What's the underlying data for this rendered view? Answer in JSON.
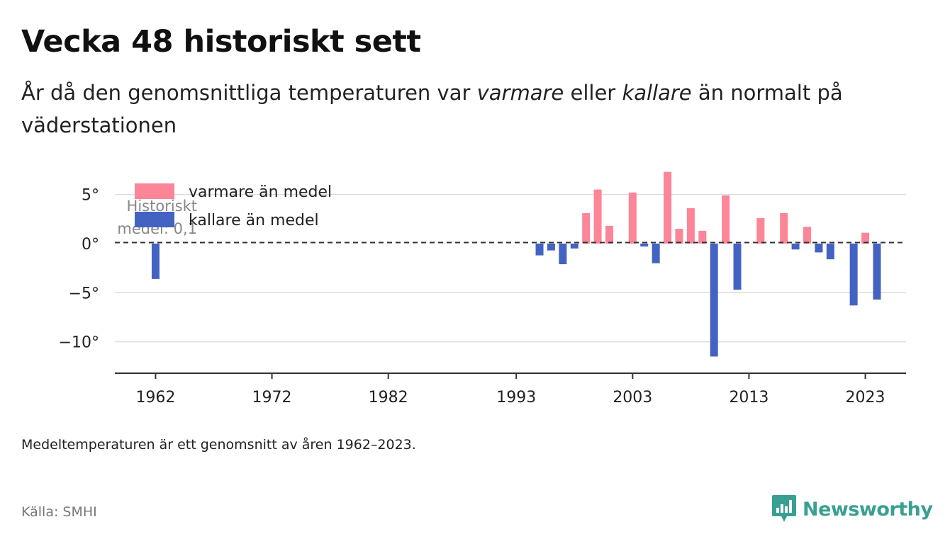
{
  "header": {
    "title": "Vecka 48 historiskt sett",
    "subtitle_pre": "År då den genomsnittliga temperaturen var ",
    "subtitle_em1": "varmare",
    "subtitle_mid": " eller ",
    "subtitle_em2": "kallare",
    "subtitle_post": " än normalt på väderstationen"
  },
  "footer": {
    "note": "Medeltemperaturen är ett genomsnitt av åren 1962–2023.",
    "source": "Källa: SMHI",
    "brand": "Newsworthy"
  },
  "colors": {
    "warm": "#fc8597",
    "cold": "#4263c2",
    "grid": "#dddddd",
    "axis": "#333333",
    "reference_line": "#333333",
    "brand": "#3a9f93"
  },
  "chart_data": {
    "type": "bar",
    "title": "Vecka 48 historiskt sett",
    "reference_value": 0.1,
    "reference_label": [
      "Historiskt",
      "medel: 0,1"
    ],
    "legend": [
      {
        "key": "warm",
        "label": "varmare än medel"
      },
      {
        "key": "cold",
        "label": "kallare än medel"
      }
    ],
    "legend_position": "top-left",
    "grid": true,
    "xlim": [
      1958.5,
      2026.5
    ],
    "ylim": [
      -13.2,
      8
    ],
    "x_ticks": [
      1962,
      1972,
      1982,
      1993,
      2003,
      2013,
      2023
    ],
    "y_ticks": [
      5,
      0,
      -5,
      -10
    ],
    "y_tick_labels": [
      "5°",
      "0°",
      "−5°",
      "−10°"
    ],
    "points": [
      {
        "x": 1962,
        "y": -3.6
      },
      {
        "x": 1995,
        "y": -1.2
      },
      {
        "x": 1996,
        "y": -0.7
      },
      {
        "x": 1997,
        "y": -2.1
      },
      {
        "x": 1998,
        "y": -0.5
      },
      {
        "x": 1999,
        "y": 3.1
      },
      {
        "x": 2000,
        "y": 5.5
      },
      {
        "x": 2001,
        "y": 1.8
      },
      {
        "x": 2003,
        "y": 5.2
      },
      {
        "x": 2004,
        "y": -0.3
      },
      {
        "x": 2005,
        "y": -2.0
      },
      {
        "x": 2006,
        "y": 7.3
      },
      {
        "x": 2007,
        "y": 1.5
      },
      {
        "x": 2008,
        "y": 3.6
      },
      {
        "x": 2009,
        "y": 1.3
      },
      {
        "x": 2010,
        "y": -11.5
      },
      {
        "x": 2011,
        "y": 4.9
      },
      {
        "x": 2012,
        "y": -4.7
      },
      {
        "x": 2014,
        "y": 2.6
      },
      {
        "x": 2016,
        "y": 3.1
      },
      {
        "x": 2017,
        "y": -0.6
      },
      {
        "x": 2018,
        "y": 1.7
      },
      {
        "x": 2019,
        "y": -0.9
      },
      {
        "x": 2020,
        "y": -1.6
      },
      {
        "x": 2022,
        "y": -6.3
      },
      {
        "x": 2023,
        "y": 1.1
      },
      {
        "x": 2024,
        "y": -5.7
      }
    ]
  }
}
